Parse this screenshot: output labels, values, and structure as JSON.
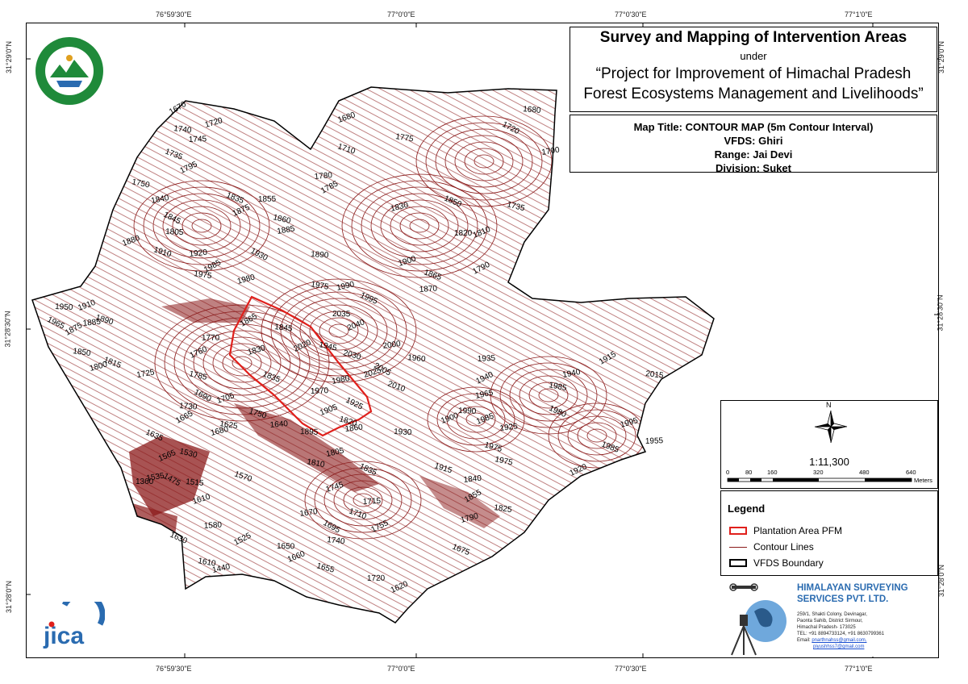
{
  "coords": {
    "top": [
      "76°59'30\"E",
      "77°0'0\"E",
      "77°0'30\"E",
      "77°1'0\"E"
    ],
    "bottom": [
      "76°59'30\"E",
      "77°0'0\"E",
      "77°0'30\"E",
      "77°1'0\"E"
    ],
    "left": [
      "31°29'0\"N",
      "31°28'30\"N",
      "31°28'0\"N"
    ],
    "right": [
      "31°29'0\"N",
      "31°28'30\"N",
      "31°28'0\"N"
    ]
  },
  "title": {
    "main": "Survey and Mapping of Intervention Areas",
    "under": "under",
    "project_line1": "“Project for Improvement of Himachal Pradesh",
    "project_line2": "Forest Ecosystems Management and Livelihoods”"
  },
  "info": {
    "map_title": "Map Title: CONTOUR MAP (5m Contour Interval)",
    "vfds": "VFDS: Ghiri",
    "range": "Range: Jai Devi",
    "division": "Division: Suket"
  },
  "north_label": "N",
  "scale": {
    "ratio": "1:11,300",
    "ticks": [
      "0",
      "80",
      "160",
      "320",
      "480",
      "640"
    ],
    "unit": "Meters"
  },
  "legend": {
    "title": "Legend",
    "items": [
      {
        "label": "Plantation Area PFM",
        "color": "#e0201c"
      },
      {
        "label": "Contour Lines",
        "color": "#8b1a1a"
      },
      {
        "label": "VFDS Boundary",
        "color": "#000000"
      }
    ]
  },
  "company": {
    "name_line1": "HIMALAYAN SURVEYING",
    "name_line2": "SERVICES PVT. LTD.",
    "address_line1": "259/1, Shakti Colony, Devinagar,",
    "address_line2": "Paonta Sahib, District Sirmour,",
    "address_line3": "Himachal Pradesh- 173025",
    "tel": "TEL: +91 8894733124, +91 8630799361",
    "email_label": "Email: ",
    "email1": "pnarthnahss@gmail.com,",
    "email2": "piyushhss7@gmail.com"
  },
  "contour_labels": [
    "1670",
    "1740",
    "1720",
    "1735",
    "1745",
    "1795",
    "1750",
    "1840",
    "1845",
    "1805",
    "1880",
    "1910",
    "1920",
    "1985",
    "1975",
    "1980",
    "1835",
    "1855",
    "1875",
    "1860",
    "1885",
    "1930",
    "1890",
    "1680",
    "1710",
    "1780",
    "1785",
    "1775",
    "1830",
    "1850",
    "1820",
    "1810",
    "1735",
    "1700",
    "1720",
    "1680",
    "1900",
    "1865",
    "1870",
    "1790",
    "1975",
    "1990",
    "1995",
    "2035",
    "2040",
    "2030",
    "2000",
    "2005",
    "1960",
    "2025",
    "2010",
    "1935",
    "1940",
    "1985",
    "1965",
    "1980",
    "1990",
    "1985",
    "1975",
    "1925",
    "1915",
    "2015",
    "1995",
    "1985",
    "1955",
    "1920",
    "1975",
    "1940",
    "1965",
    "1950",
    "1910",
    "1890",
    "1885",
    "1875",
    "1850",
    "1800",
    "1815",
    "1770",
    "1760",
    "1785",
    "1725",
    "1690",
    "1730",
    "1705",
    "1750",
    "1640",
    "1665",
    "1625",
    "1680",
    "1635",
    "1360",
    "1565",
    "1530",
    "1535",
    "1475",
    "1515",
    "1610",
    "1570",
    "1580",
    "1525",
    "1610",
    "1440",
    "1630",
    "1650",
    "1660",
    "1655",
    "1670",
    "1695",
    "1740",
    "1745",
    "1710",
    "1715",
    "1755",
    "1810",
    "1805",
    "1835",
    "1895",
    "1905",
    "1820",
    "1860",
    "1865",
    "1845",
    "1830",
    "1835",
    "1970",
    "2020",
    "1945",
    "1980",
    "1925",
    "1930",
    "1900",
    "1915",
    "1840",
    "1855",
    "1825",
    "1790",
    "1675",
    "1720",
    "1620"
  ]
}
